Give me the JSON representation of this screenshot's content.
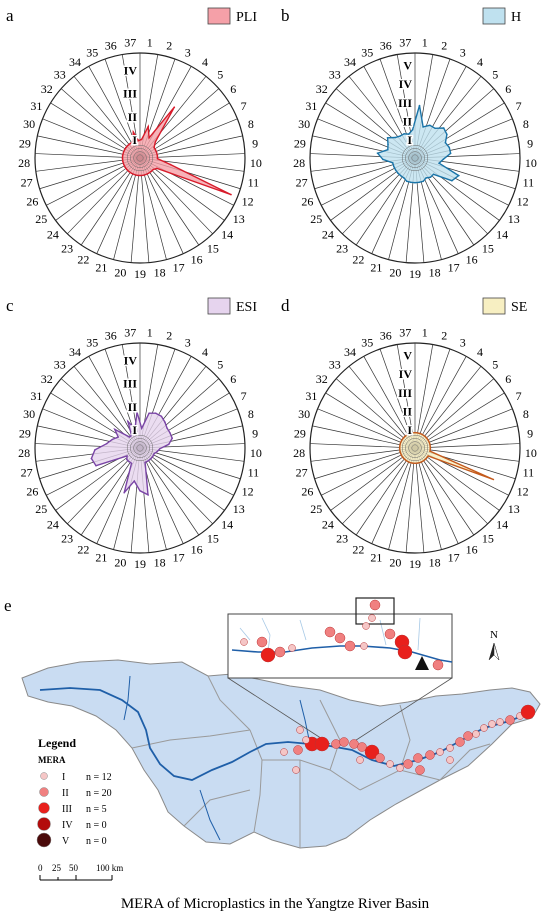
{
  "panels": [
    {
      "letter": "a",
      "legend": "PLI",
      "fill": "#f5a0a8",
      "stroke": "#d81b2a",
      "levels": [
        "I",
        "II",
        "III",
        "IV"
      ],
      "values": [
        0.55,
        1.15,
        0.7,
        2.4,
        0.7,
        0.5,
        0.5,
        0.5,
        0.5,
        0.5,
        1.1,
        4.0,
        0.6,
        0.5,
        0.5,
        0.5,
        0.5,
        0.5,
        0.5,
        0.5,
        0.5,
        0.5,
        0.5,
        0.5,
        0.5,
        0.5,
        0.5,
        0.5,
        0.5,
        0.5,
        0.5,
        0.5,
        0.5,
        0.5,
        0.5,
        0.9,
        0.5
      ]
    },
    {
      "letter": "b",
      "legend": "H",
      "fill": "#bfe1ef",
      "stroke": "#1a74a8",
      "levels": [
        "I",
        "II",
        "III",
        "IV",
        "V"
      ],
      "values": [
        2.5,
        1.4,
        1.6,
        1.6,
        1.9,
        1.8,
        1.5,
        1.6,
        1.6,
        1.2,
        1.0,
        2.2,
        2.0,
        1.0,
        1.0,
        0.9,
        1.0,
        1.0,
        1.0,
        1.0,
        1.0,
        0.9,
        0.9,
        0.9,
        0.9,
        0.9,
        0.9,
        1.4,
        1.7,
        1.2,
        1.3,
        1.5,
        1.2,
        1.1,
        1.1,
        1.0,
        1.2
      ]
    },
    {
      "letter": "c",
      "legend": "ESI",
      "fill": "#e6d4ee",
      "stroke": "#7a45a6",
      "levels": [
        "I",
        "II",
        "III",
        "IV"
      ],
      "values": [
        0.6,
        1.3,
        1.4,
        1.4,
        1.3,
        1.2,
        1.2,
        1.2,
        1.0,
        0.6,
        0.5,
        0.4,
        0.4,
        0.4,
        0.4,
        0.4,
        0.4,
        1.8,
        1.6,
        1.2,
        1.8,
        0.5,
        0.5,
        0.5,
        0.4,
        1.8,
        1.9,
        1.7,
        1.2,
        1.0,
        0.8,
        1.1,
        0.4,
        0.4,
        1.0,
        0.6,
        1.3
      ]
    },
    {
      "letter": "d",
      "legend": "SE",
      "fill": "#f7efc2",
      "stroke": "#c45a1c",
      "levels": [
        "I",
        "II",
        "III",
        "IV",
        "V"
      ],
      "values": [
        0.5,
        0.5,
        0.5,
        0.5,
        0.5,
        0.5,
        0.5,
        0.5,
        0.5,
        0.5,
        0.5,
        4.2,
        0.5,
        0.5,
        0.5,
        0.5,
        0.5,
        0.5,
        0.5,
        0.5,
        0.5,
        0.5,
        0.5,
        0.5,
        0.5,
        0.5,
        0.5,
        0.5,
        0.5,
        0.5,
        0.5,
        0.5,
        0.5,
        0.5,
        0.5,
        0.5,
        0.5
      ]
    }
  ],
  "map": {
    "letter": "e",
    "legend_title": "Legend",
    "legend_subtitle": "MERA",
    "classes": [
      {
        "label": "I",
        "count": "n = 12",
        "color": "#f5c6c6"
      },
      {
        "label": "II",
        "count": "n = 20",
        "color": "#f08080"
      },
      {
        "label": "III",
        "count": "n = 5",
        "color": "#e8201c"
      },
      {
        "label": "IV",
        "count": "n = 0",
        "color": "#b30c0c"
      },
      {
        "label": "V",
        "count": "n = 0",
        "color": "#4a0a0a"
      }
    ],
    "scale_labels": [
      "0",
      "25",
      "50",
      "100 km"
    ],
    "north": "N",
    "basin_color": "#c9dcf2",
    "river_color": "#1f5fa8"
  },
  "caption": "MERA of Microplastics in the Yangtze River Basin"
}
